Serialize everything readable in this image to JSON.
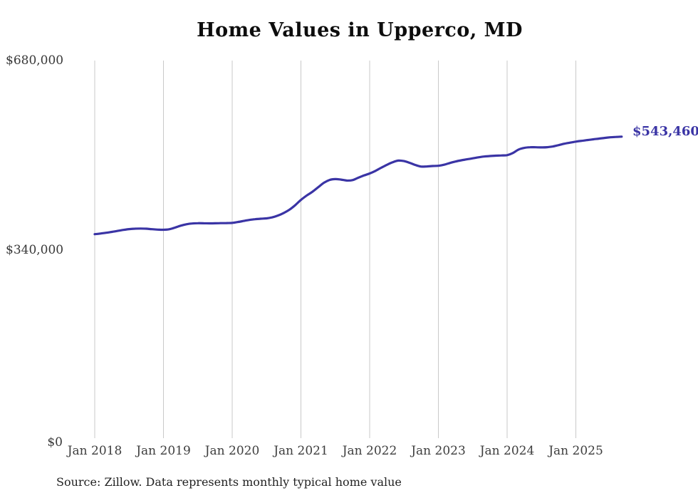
{
  "title": "Home Values in Upperco, MD",
  "source_note": "Source: Zillow. Data represents monthly typical home value",
  "end_label": "$543,460",
  "colors": {
    "line": "#3a34a5",
    "end_label": "#3a34a5",
    "grid": "#c9c9c9",
    "title": "#0d0d0d",
    "axis_text": "#3e3e3e",
    "background": "#ffffff"
  },
  "chart_data": {
    "type": "line",
    "title": "Home Values in Upperco, MD",
    "series_name": "Monthly typical home value",
    "xlabel": "",
    "ylabel": "",
    "ylim": [
      0,
      680000
    ],
    "y_ticks": [
      0,
      340000,
      680000
    ],
    "y_tick_labels": [
      "$0",
      "$340,000",
      "$680,000"
    ],
    "x_tick_labels": [
      "Jan 2018",
      "Jan 2019",
      "Jan 2020",
      "Jan 2021",
      "Jan 2022",
      "Jan 2023",
      "Jan 2024",
      "Jan 2025"
    ],
    "grid": "vertical-only",
    "legend": "none",
    "last_value": 543460,
    "x": [
      "2018-01",
      "2018-02",
      "2018-03",
      "2018-04",
      "2018-05",
      "2018-06",
      "2018-07",
      "2018-08",
      "2018-09",
      "2018-10",
      "2018-11",
      "2018-12",
      "2019-01",
      "2019-02",
      "2019-03",
      "2019-04",
      "2019-05",
      "2019-06",
      "2019-07",
      "2019-08",
      "2019-09",
      "2019-10",
      "2019-11",
      "2019-12",
      "2020-01",
      "2020-02",
      "2020-03",
      "2020-04",
      "2020-05",
      "2020-06",
      "2020-07",
      "2020-08",
      "2020-09",
      "2020-10",
      "2020-11",
      "2020-12",
      "2021-01",
      "2021-02",
      "2021-03",
      "2021-04",
      "2021-05",
      "2021-06",
      "2021-07",
      "2021-08",
      "2021-09",
      "2021-10",
      "2021-11",
      "2021-12",
      "2022-01",
      "2022-02",
      "2022-03",
      "2022-04",
      "2022-05",
      "2022-06",
      "2022-07",
      "2022-08",
      "2022-09",
      "2022-10",
      "2022-11",
      "2022-12",
      "2023-01",
      "2023-02",
      "2023-03",
      "2023-04",
      "2023-05",
      "2023-06",
      "2023-07",
      "2023-08",
      "2023-09",
      "2023-10",
      "2023-11",
      "2023-12",
      "2024-01",
      "2024-02",
      "2024-03",
      "2024-04",
      "2024-05",
      "2024-06",
      "2024-07",
      "2024-08",
      "2024-09",
      "2024-10",
      "2024-11",
      "2024-12",
      "2025-01",
      "2025-02",
      "2025-03",
      "2025-04",
      "2025-05",
      "2025-06",
      "2025-07",
      "2025-08",
      "2025-09"
    ],
    "values": [
      368500,
      369600,
      371000,
      372600,
      374400,
      376200,
      377600,
      378400,
      378600,
      378300,
      377500,
      376700,
      376400,
      377300,
      380200,
      383700,
      386300,
      387700,
      388200,
      388100,
      387900,
      388000,
      388300,
      388500,
      388700,
      390300,
      392300,
      394100,
      395400,
      396200,
      396900,
      398700,
      402000,
      406600,
      412500,
      420500,
      430000,
      437800,
      444500,
      452600,
      460600,
      465800,
      467300,
      466400,
      464800,
      465500,
      469800,
      473800,
      477400,
      482000,
      487600,
      492900,
      497500,
      500500,
      499600,
      496500,
      492600,
      489800,
      490100,
      490800,
      491200,
      493100,
      496200,
      498900,
      501100,
      502800,
      504600,
      506400,
      507800,
      508700,
      509300,
      509800,
      510300,
      514100,
      520300,
      523300,
      524500,
      524400,
      524200,
      524600,
      525900,
      528300,
      530800,
      532800,
      534600,
      536000,
      537300,
      538600,
      539900,
      541200,
      542300,
      543000,
      543460
    ]
  }
}
